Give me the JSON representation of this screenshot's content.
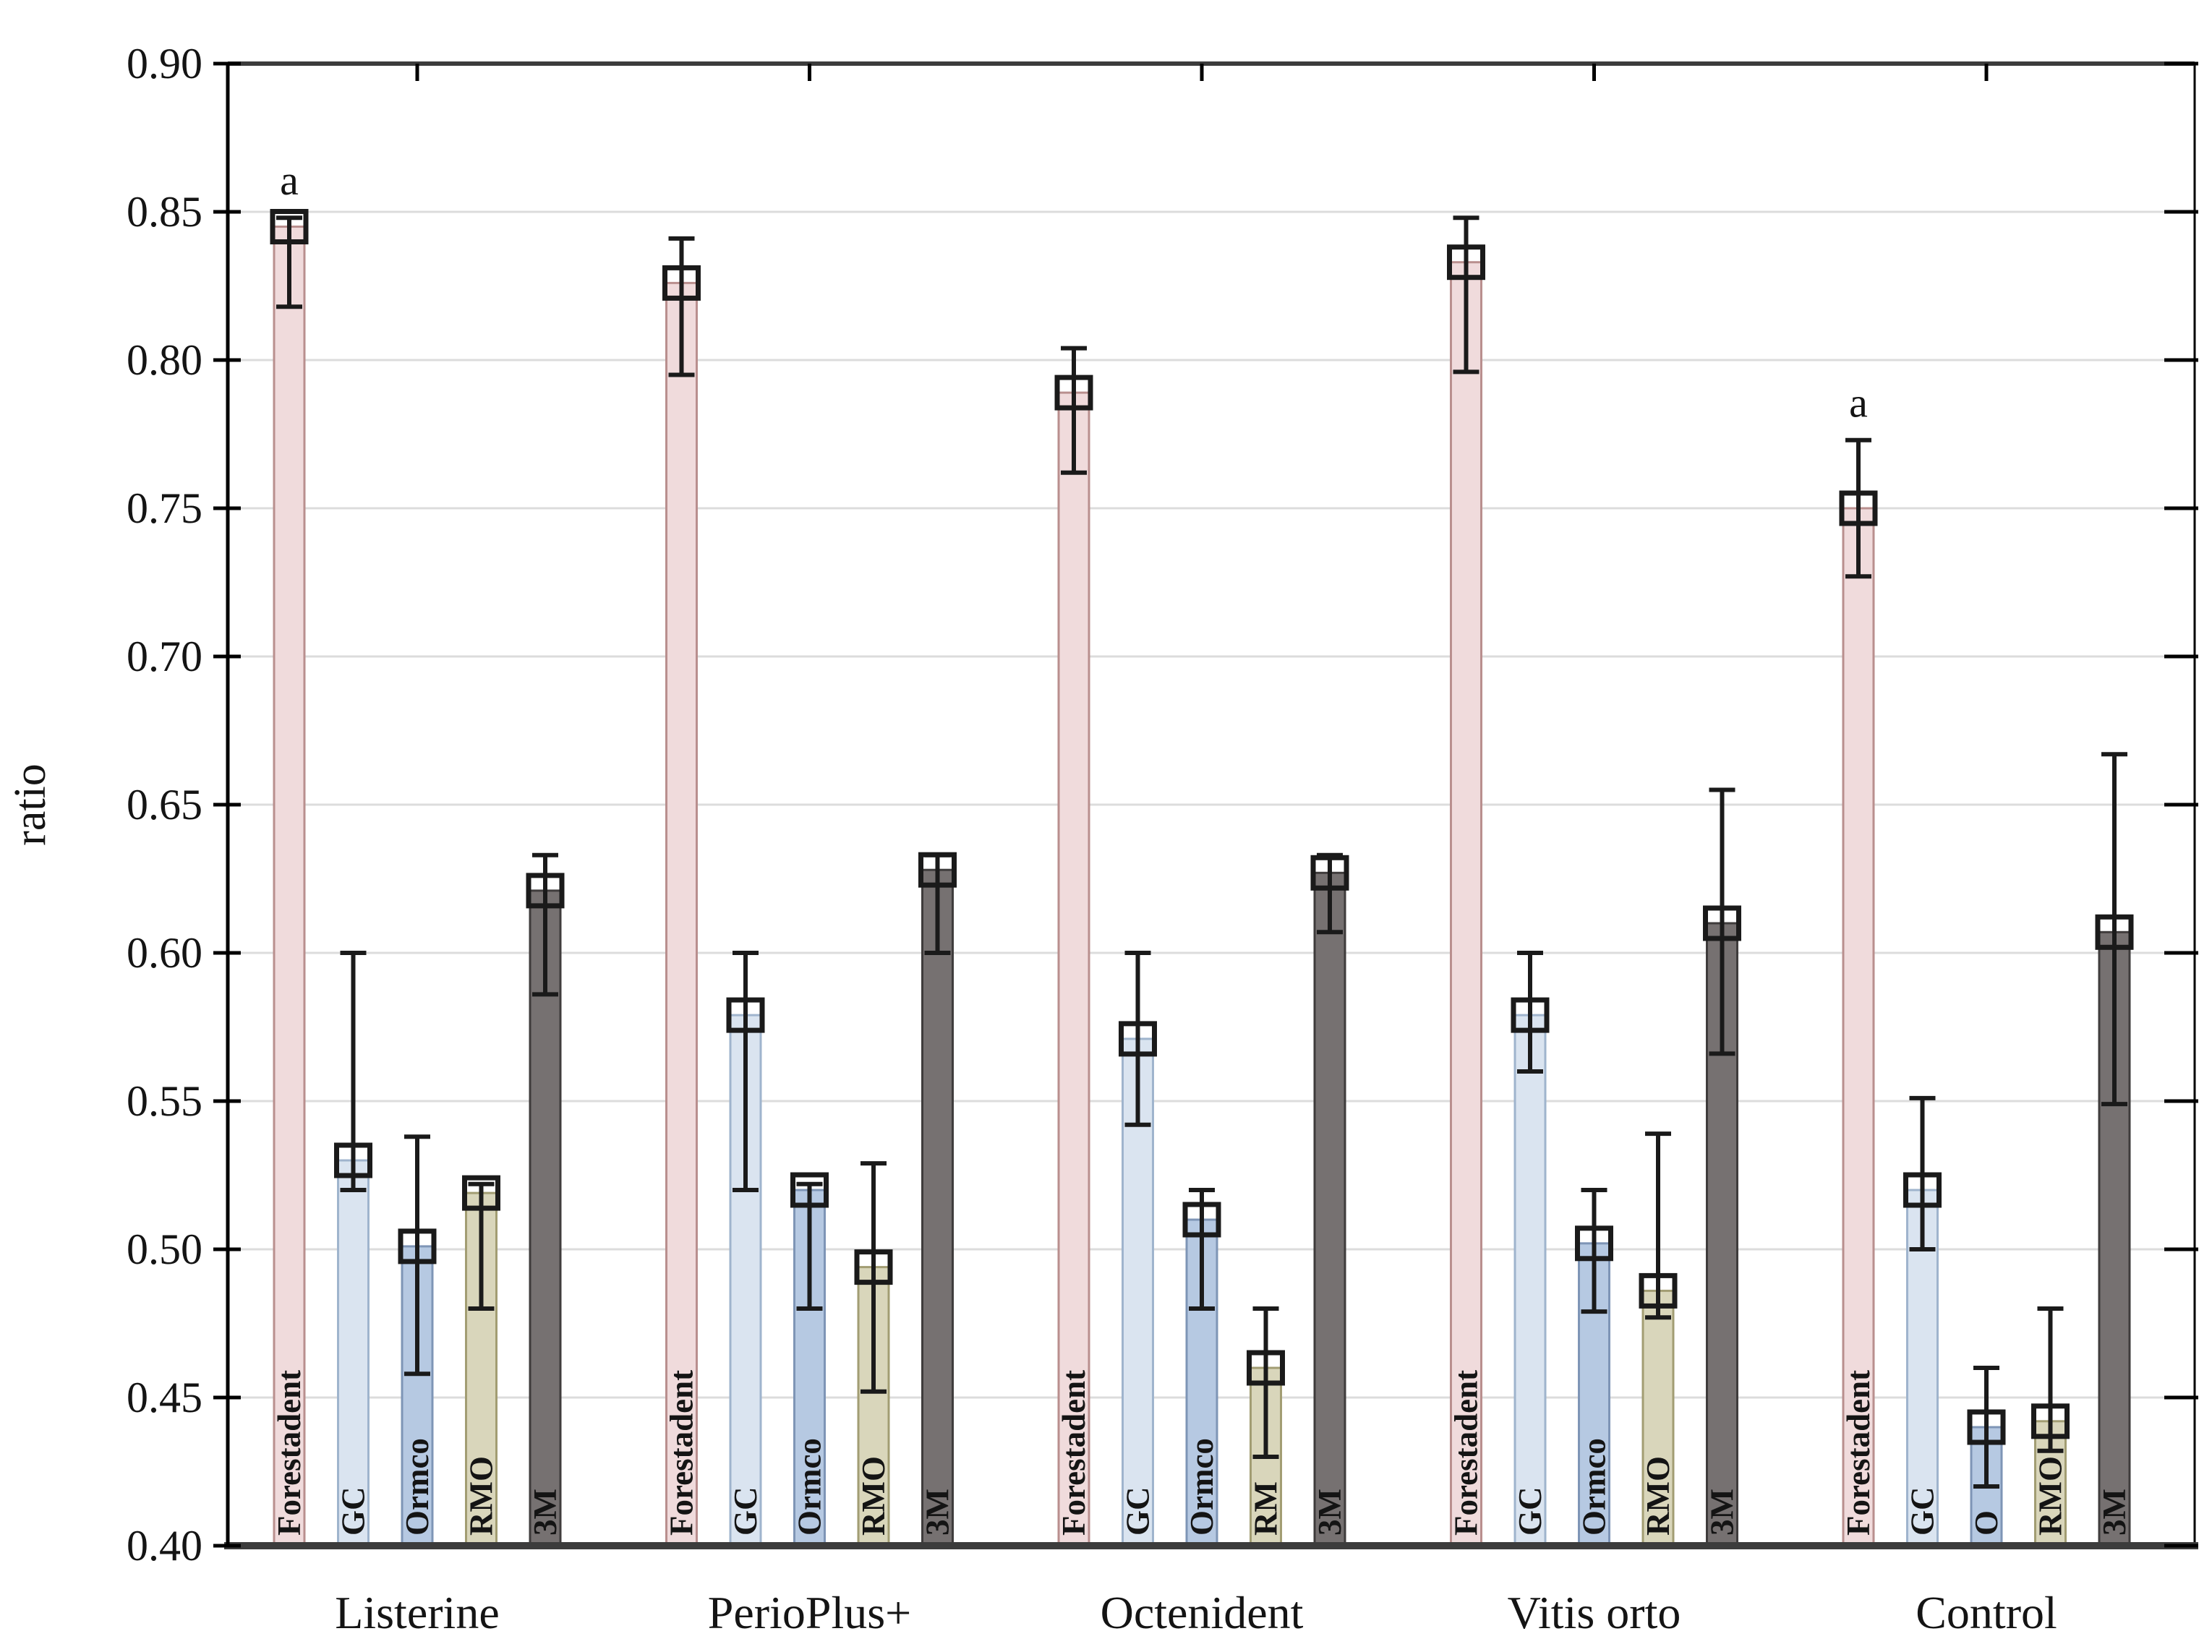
{
  "chart_data": {
    "type": "bar",
    "title": "",
    "xlabel": "",
    "ylabel": "ratio",
    "ylim": [
      0.4,
      0.9
    ],
    "yticks": [
      0.4,
      0.45,
      0.5,
      0.55,
      0.6,
      0.65,
      0.7,
      0.75,
      0.8,
      0.85,
      0.9
    ],
    "ytick_labels": [
      "0.40",
      "0.45",
      "0.50",
      "0.55",
      "0.60",
      "0.65",
      "0.70",
      "0.75",
      "0.80",
      "0.85",
      "0.90"
    ],
    "grid": true,
    "legend_position": "none",
    "error_bars": true,
    "categories": [
      "Listerine",
      "PerioPlus+",
      "Octenident",
      "Vitis orto",
      "Control"
    ],
    "series": [
      {
        "name": "Forestadent",
        "fill": "#f0dbdc",
        "border": "#b98f8e",
        "values": [
          0.845,
          0.826,
          0.789,
          0.833,
          0.75
        ],
        "err_low": [
          0.818,
          0.795,
          0.762,
          0.796,
          0.727
        ],
        "err_high": [
          0.848,
          0.841,
          0.804,
          0.848,
          0.773
        ],
        "bar_labels": [
          "Forestadent",
          "Forestadent",
          "Forestadent",
          "Forestadent",
          "Forestadent"
        ]
      },
      {
        "name": "GC",
        "fill": "#dae4f0",
        "border": "#9fb4cd",
        "values": [
          0.53,
          0.579,
          0.571,
          0.579,
          0.52
        ],
        "err_low": [
          0.52,
          0.52,
          0.542,
          0.56,
          0.5
        ],
        "err_high": [
          0.6,
          0.6,
          0.6,
          0.6,
          0.551
        ],
        "bar_labels": [
          "GC",
          "GC",
          "GC",
          "GC",
          "GC"
        ]
      },
      {
        "name": "Ormco",
        "fill": "#b6c9e2",
        "border": "#7e95b6",
        "values": [
          0.501,
          0.52,
          0.51,
          0.502,
          0.44
        ],
        "err_low": [
          0.458,
          0.48,
          0.48,
          0.479,
          0.42
        ],
        "err_high": [
          0.538,
          0.522,
          0.52,
          0.52,
          0.46
        ],
        "bar_labels": [
          "Ormco",
          "Ormco",
          "Ormco",
          "Ormco",
          "O"
        ]
      },
      {
        "name": "RMO",
        "fill": "#d9d6bb",
        "border": "#a29d73",
        "values": [
          0.519,
          0.494,
          0.46,
          0.486,
          0.442
        ],
        "err_low": [
          0.48,
          0.452,
          0.43,
          0.477,
          0.432
        ],
        "err_high": [
          0.522,
          0.529,
          0.48,
          0.539,
          0.48
        ],
        "bar_labels": [
          "RMO",
          "RMO",
          "RM",
          "RMO",
          "RMO"
        ]
      },
      {
        "name": "3M",
        "fill": "#767171",
        "border": "#3f3c3c",
        "values": [
          0.621,
          0.628,
          0.627,
          0.61,
          0.607
        ],
        "err_low": [
          0.586,
          0.6,
          0.607,
          0.566,
          0.549
        ],
        "err_high": [
          0.633,
          0.633,
          0.633,
          0.655,
          0.667
        ],
        "bar_labels": [
          "3M",
          "3M",
          "3M",
          "3M",
          "3M"
        ]
      }
    ],
    "annotations": [
      {
        "category_index": 0,
        "series_index": 0,
        "text": "a"
      },
      {
        "category_index": 4,
        "series_index": 0,
        "text": "a"
      }
    ],
    "colors": {
      "gridline": "#dcdcdc",
      "frame": "#3c3c3c",
      "axis_left": "#000000",
      "error_bar": "#1a1a1a",
      "text": "#141414"
    }
  }
}
